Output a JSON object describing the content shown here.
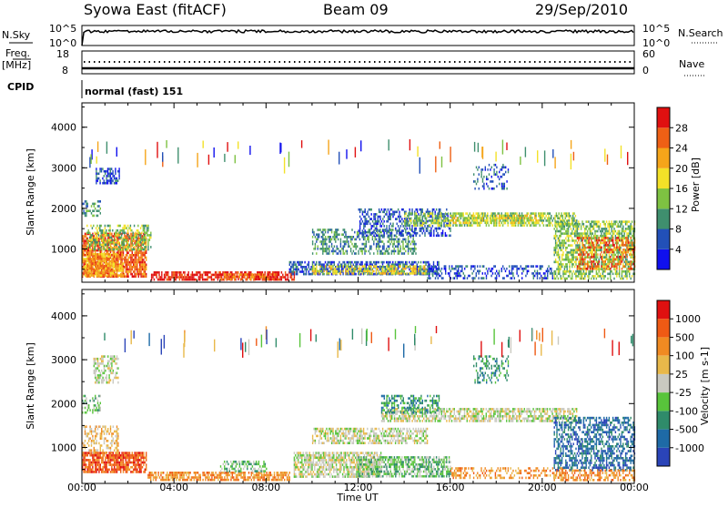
{
  "header": {
    "title": "Syowa East (fitACF)",
    "beam": "Beam 09",
    "date": "29/Sep/2010"
  },
  "strip_panels": {
    "nsky_label": "N.Sky",
    "nsearch_label": "N.Search",
    "nsky_ticks": [
      "10^5",
      "10^0"
    ],
    "nsearch_ticks": [
      "10^5",
      "10^0"
    ],
    "freq_label": "Freq.",
    "freq_unit": "[MHz]",
    "freq_ticks": [
      "18",
      "8"
    ],
    "nave_label": "Nave",
    "nave_ticks": [
      "60",
      "0"
    ],
    "cpid_label": "CPID",
    "cpid_text": "normal (fast) 151"
  },
  "chart_data": [
    {
      "type": "heatmap",
      "name": "power",
      "ylabel": "Slant Range [km]",
      "y_ticks": [
        1000,
        2000,
        3000,
        4000
      ],
      "ylim": [
        180,
        4600
      ],
      "colorbar": {
        "label": "Power [dB]",
        "ticks": [
          "4",
          "8",
          "12",
          "16",
          "20",
          "24",
          "28"
        ],
        "colors": [
          "#1010ee",
          "#2250b8",
          "#3f8f6e",
          "#7ec242",
          "#f3e128",
          "#f5a51a",
          "#ef6015",
          "#e01010"
        ]
      },
      "x_ticks": [
        "00:00",
        "04:00",
        "08:00",
        "12:00",
        "16:00",
        "20:00",
        "00:00"
      ]
    },
    {
      "type": "heatmap",
      "name": "velocity",
      "ylabel": "Slant Range [km]",
      "y_ticks": [
        1000,
        2000,
        3000,
        4000
      ],
      "ylim": [
        180,
        4600
      ],
      "colorbar": {
        "label": "Velocity [m s-1]",
        "ticks": [
          "1000",
          "500",
          "100",
          "25",
          "-25",
          "-100",
          "-500",
          "-1000"
        ],
        "colors": [
          "#2a44b8",
          "#1e6aa6",
          "#2f8b6a",
          "#58c43b",
          "#c9c9c0",
          "#e8b84a",
          "#f08a22",
          "#ef5a14",
          "#e01010"
        ]
      },
      "x_ticks": [
        "00:00",
        "04:00",
        "08:00",
        "12:00",
        "16:00",
        "20:00",
        "00:00"
      ],
      "xlabel": "Time UT"
    }
  ],
  "blobs_power": [
    {
      "t0": 0.0,
      "t1": 2.8,
      "r0": 300,
      "r1": 1400,
      "c": 6,
      "d": 0.8
    },
    {
      "t0": 0.0,
      "t1": 1.8,
      "r0": 350,
      "r1": 900,
      "c": 5,
      "d": 0.7
    },
    {
      "t0": 0.2,
      "t1": 3.0,
      "r0": 1000,
      "r1": 1600,
      "c": 3,
      "d": 0.5
    },
    {
      "t0": 0.6,
      "t1": 1.6,
      "r0": 2600,
      "r1": 3000,
      "c": 1,
      "d": 0.55
    },
    {
      "t0": 0.0,
      "t1": 0.8,
      "r0": 1800,
      "r1": 2200,
      "c": 2,
      "d": 0.4
    },
    {
      "t0": 3.0,
      "t1": 9.2,
      "r0": 250,
      "r1": 450,
      "c": 7,
      "d": 0.7
    },
    {
      "t0": 6.0,
      "t1": 8.5,
      "r0": 250,
      "r1": 400,
      "c": 6,
      "d": 0.75
    },
    {
      "t0": 9.0,
      "t1": 15.5,
      "r0": 350,
      "r1": 700,
      "c": 1,
      "d": 0.65
    },
    {
      "t0": 10.0,
      "t1": 15.0,
      "r0": 400,
      "r1": 600,
      "c": 4,
      "d": 0.6
    },
    {
      "t0": 10.0,
      "t1": 14.5,
      "r0": 900,
      "r1": 1500,
      "c": 2,
      "d": 0.45
    },
    {
      "t0": 12.0,
      "t1": 16.0,
      "r0": 1300,
      "r1": 2000,
      "c": 1,
      "d": 0.45
    },
    {
      "t0": 14.0,
      "t1": 21.5,
      "r0": 1600,
      "r1": 1900,
      "c": 3,
      "d": 0.6
    },
    {
      "t0": 16.0,
      "t1": 20.0,
      "r0": 1650,
      "r1": 1850,
      "c": 4,
      "d": 0.5
    },
    {
      "t0": 15.0,
      "t1": 20.5,
      "r0": 250,
      "r1": 600,
      "c": 1,
      "d": 0.4
    },
    {
      "t0": 20.5,
      "t1": 24.0,
      "r0": 250,
      "r1": 1700,
      "c": 3,
      "d": 0.6
    },
    {
      "t0": 21.5,
      "t1": 24.0,
      "r0": 500,
      "r1": 1300,
      "c": 6,
      "d": 0.45
    },
    {
      "t0": 17.0,
      "t1": 18.5,
      "r0": 2500,
      "r1": 3100,
      "c": 1,
      "d": 0.3
    }
  ],
  "blobs_velocity": [
    {
      "t0": 0.0,
      "t1": 2.8,
      "r0": 450,
      "r1": 900,
      "c": 7,
      "d": 0.8
    },
    {
      "t0": 0.0,
      "t1": 1.6,
      "r0": 900,
      "r1": 1500,
      "c": 5,
      "d": 0.45
    },
    {
      "t0": 0.5,
      "t1": 1.6,
      "r0": 2500,
      "r1": 3100,
      "c": 4,
      "d": 0.5
    },
    {
      "t0": 0.0,
      "t1": 0.8,
      "r0": 1800,
      "r1": 2200,
      "c": 3,
      "d": 0.4
    },
    {
      "t0": 2.8,
      "t1": 9.0,
      "r0": 250,
      "r1": 450,
      "c": 6,
      "d": 0.7
    },
    {
      "t0": 6.0,
      "t1": 8.0,
      "r0": 450,
      "r1": 700,
      "c": 3,
      "d": 0.5
    },
    {
      "t0": 9.2,
      "t1": 13.0,
      "r0": 350,
      "r1": 900,
      "c": 4,
      "d": 0.7
    },
    {
      "t0": 12.0,
      "t1": 16.0,
      "r0": 350,
      "r1": 800,
      "c": 3,
      "d": 0.65
    },
    {
      "t0": 10.0,
      "t1": 15.0,
      "r0": 1100,
      "r1": 1450,
      "c": 4,
      "d": 0.6
    },
    {
      "t0": 13.0,
      "t1": 21.5,
      "r0": 1600,
      "r1": 1900,
      "c": 4,
      "d": 0.65
    },
    {
      "t0": 13.0,
      "t1": 15.5,
      "r0": 1800,
      "r1": 2200,
      "c": 2,
      "d": 0.45
    },
    {
      "t0": 16.0,
      "t1": 21.0,
      "r0": 300,
      "r1": 550,
      "c": 6,
      "d": 0.35
    },
    {
      "t0": 20.5,
      "t1": 24.0,
      "r0": 500,
      "r1": 1700,
      "c": 1,
      "d": 0.55
    },
    {
      "t0": 20.5,
      "t1": 24.0,
      "r0": 250,
      "r1": 500,
      "c": 6,
      "d": 0.5
    },
    {
      "t0": 17.0,
      "t1": 18.5,
      "r0": 2500,
      "r1": 3100,
      "c": 2,
      "d": 0.3
    }
  ]
}
